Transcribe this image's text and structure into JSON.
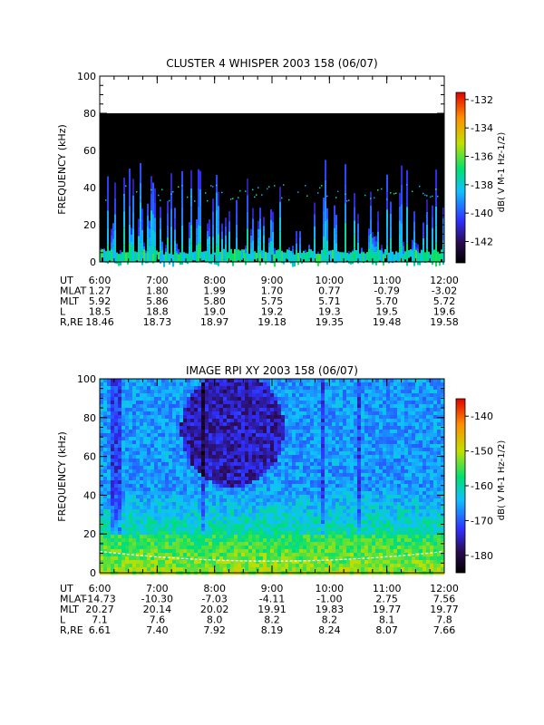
{
  "chart_data": [
    {
      "type": "heatmap",
      "title": "CLUSTER 4 WHISPER 2003 158 (06/07)",
      "ylabel": "FREQUENCY (kHz)",
      "ylim": [
        0,
        100
      ],
      "yticks": [
        "0",
        "20",
        "40",
        "60",
        "80",
        "100"
      ],
      "xlim_hours": [
        6,
        12
      ],
      "xticks": [
        "6:00",
        "7:00",
        "8:00",
        "9:00",
        "10:00",
        "11:00",
        "12:00"
      ],
      "data_top_khz": 80,
      "colorbar": {
        "label": "dB( V M-1 Hz-1/2)",
        "range": [
          -143.5,
          -131.5
        ],
        "ticks": [
          "-132",
          "-134",
          "-136",
          "-138",
          "-140",
          "-142"
        ],
        "tick_values": [
          -132,
          -134,
          -136,
          -138,
          -140,
          -142
        ]
      },
      "ephemeris": {
        "labels": [
          "UT",
          "MLAT",
          "MLT",
          "L",
          "R,RE"
        ],
        "rows": [
          [
            "6:00",
            "7:00",
            "8:00",
            "9:00",
            "10:00",
            "11:00",
            "12:00"
          ],
          [
            "1.27",
            "1.80",
            "1.99",
            "1.70",
            "0.77",
            "-0.79",
            "-3.02"
          ],
          [
            "5.92",
            "5.86",
            "5.80",
            "5.75",
            "5.71",
            "5.70",
            "5.72"
          ],
          [
            "18.5",
            "18.8",
            "19.0",
            "19.2",
            "19.3",
            "19.5",
            "19.6"
          ],
          [
            "18.46",
            "18.73",
            "18.97",
            "19.18",
            "19.35",
            "19.48",
            "19.58"
          ]
        ]
      }
    },
    {
      "type": "heatmap",
      "title": "IMAGE RPI XY 2003 158 (06/07)",
      "ylabel": "FREQUENCY (kHz)",
      "ylim": [
        0,
        100
      ],
      "yticks": [
        "0",
        "20",
        "40",
        "60",
        "80",
        "100"
      ],
      "xlim_hours": [
        6,
        12
      ],
      "xticks": [
        "6:00",
        "7:00",
        "8:00",
        "9:00",
        "10:00",
        "11:00",
        "12:00"
      ],
      "colorbar": {
        "label": "dB( V M-1 Hz-1/2)",
        "range": [
          -185,
          -135
        ],
        "ticks": [
          "-140",
          "-150",
          "-160",
          "-170",
          "-180"
        ],
        "tick_values": [
          -140,
          -150,
          -160,
          -170,
          -180
        ]
      },
      "ephemeris": {
        "labels": [
          "UT",
          "MLAT",
          "MLT",
          "L",
          "R,RE"
        ],
        "rows": [
          [
            "6:00",
            "7:00",
            "8:00",
            "9:00",
            "10:00",
            "11:00",
            "12:00"
          ],
          [
            "-14.73",
            "-10.30",
            "-7.03",
            "-4.11",
            "-1.00",
            "2.75",
            "7.56"
          ],
          [
            "20.27",
            "20.14",
            "20.02",
            "19.91",
            "19.83",
            "19.77",
            "19.77"
          ],
          [
            "7.1",
            "7.6",
            "8.0",
            "8.2",
            "8.2",
            "8.1",
            "7.8"
          ],
          [
            "6.61",
            "7.40",
            "7.92",
            "8.19",
            "8.24",
            "8.07",
            "7.66"
          ]
        ]
      }
    }
  ]
}
